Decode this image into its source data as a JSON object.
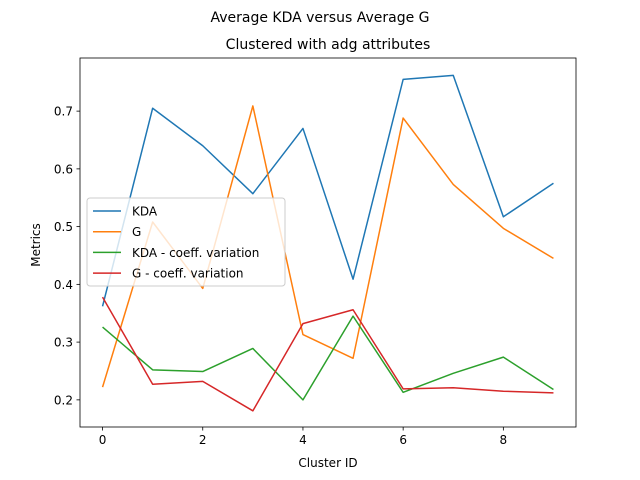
{
  "chart_data": {
    "type": "line",
    "suptitle": "Average KDA versus Average G",
    "title": "Clustered with adg attributes",
    "xlabel": "Cluster ID",
    "ylabel": "Metrics",
    "x": [
      0,
      1,
      2,
      3,
      4,
      5,
      6,
      7,
      8,
      9
    ],
    "xlim": [
      -0.45,
      9.45
    ],
    "ylim": [
      0.153,
      0.792
    ],
    "xticks": [
      0,
      2,
      4,
      6,
      8
    ],
    "yticks": [
      0.2,
      0.3,
      0.4,
      0.5,
      0.6,
      0.7
    ],
    "grid": false,
    "legend_position": "center-left",
    "series": [
      {
        "name": "KDA",
        "color": "#1f77b4",
        "values": [
          0.362,
          0.705,
          0.64,
          0.557,
          0.67,
          0.409,
          0.755,
          0.762,
          0.517,
          0.575
        ]
      },
      {
        "name": "G",
        "color": "#ff7f0e",
        "values": [
          0.222,
          0.508,
          0.393,
          0.709,
          0.313,
          0.272,
          0.688,
          0.573,
          0.497,
          0.445
        ]
      },
      {
        "name": "KDA - coeff. variation",
        "color": "#2ca02c",
        "values": [
          0.326,
          0.252,
          0.249,
          0.289,
          0.2,
          0.345,
          0.213,
          0.246,
          0.274,
          0.218
        ]
      },
      {
        "name": "G - coeff. variation",
        "color": "#d62728",
        "values": [
          0.378,
          0.227,
          0.232,
          0.181,
          0.332,
          0.356,
          0.219,
          0.221,
          0.215,
          0.212
        ]
      }
    ]
  }
}
